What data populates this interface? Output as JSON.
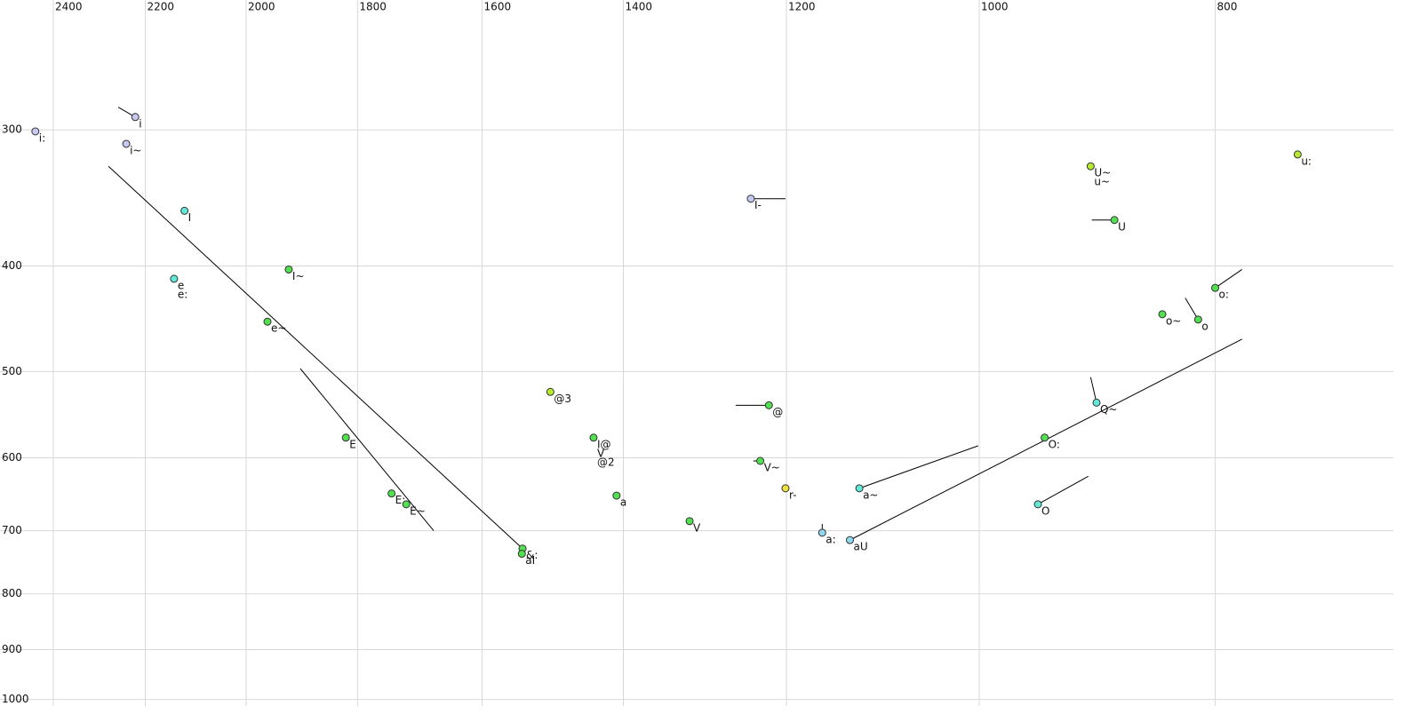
{
  "chart_data": {
    "type": "scatter",
    "x": [
      2441,
      2221,
      2240,
      2120,
      2141,
      1921,
      1960,
      1820,
      1743,
      1719,
      1540,
      1541,
      1500,
      1440,
      1409,
      1315,
      1241,
      1220,
      1230,
      1201,
      1160,
      1130,
      1120,
      900,
      880,
      740,
      800,
      841,
      813,
      895,
      940,
      946
    ],
    "y": [
      301,
      292,
      309,
      356,
      411,
      403,
      450,
      575,
      647,
      662,
      727,
      735,
      522,
      575,
      650,
      686,
      347,
      537,
      604,
      640,
      703,
      714,
      640,
      324,
      363,
      316,
      419,
      443,
      448,
      534,
      575,
      662
    ],
    "labels": [
      [
        "i:"
      ],
      [
        "i"
      ],
      [
        "i~"
      ],
      [
        "I"
      ],
      [
        "e",
        "e:"
      ],
      [
        "I~"
      ],
      [
        "e~"
      ],
      [
        "E"
      ],
      [
        "E:"
      ],
      [
        "E~"
      ],
      [
        "&:"
      ],
      [
        "aI"
      ],
      [
        "@3"
      ],
      [
        "I@",
        "V",
        "@2"
      ],
      [
        "a"
      ],
      [
        "V"
      ],
      [
        "I-"
      ],
      [
        "@"
      ],
      [
        "V~"
      ],
      [
        "r-"
      ],
      [
        "a:"
      ],
      [
        "aU"
      ],
      [
        "a~"
      ],
      [
        "U~",
        "u~"
      ],
      [
        "U"
      ],
      [
        "u:"
      ],
      [
        "o:"
      ],
      [
        "o~"
      ],
      [
        "o"
      ],
      [
        "Q~"
      ],
      [
        "O:"
      ],
      [
        "O"
      ]
    ],
    "colors": [
      "#c8c8f4",
      "#c8c8f4",
      "#c8c8f4",
      "#60e8d8",
      "#60e8d8",
      "#50e050",
      "#50e050",
      "#50e050",
      "#50e050",
      "#50e050",
      "#50e050",
      "#50e050",
      "#b8e830",
      "#50e050",
      "#50e050",
      "#50e050",
      "#c8c8f4",
      "#50e050",
      "#50e050",
      "#f0e040",
      "#90d8f0",
      "#90d8f0",
      "#60e8d8",
      "#b8e830",
      "#50e050",
      "#b8e830",
      "#50e050",
      "#50e050",
      "#50e050",
      "#60e8d8",
      "#50e050",
      "#60e8d8"
    ],
    "segments": [
      [
        2257,
        286,
        2221,
        292
      ],
      [
        2278,
        324,
        1540,
        727
      ],
      [
        1900,
        497,
        1675,
        700
      ],
      [
        1241,
        347,
        1201,
        347
      ],
      [
        1259,
        537,
        1220,
        537
      ],
      [
        1238,
        604,
        1230,
        604
      ],
      [
        1160,
        690,
        1160,
        703
      ],
      [
        1130,
        714,
        780,
        467
      ],
      [
        1120,
        640,
        1001,
        585
      ],
      [
        899,
        363,
        880,
        363
      ],
      [
        800,
        419,
        780,
        403
      ],
      [
        823,
        428,
        813,
        448
      ],
      [
        900,
        506,
        895,
        534
      ],
      [
        946,
        662,
        902,
        624
      ]
    ],
    "xlim": [
      2524,
      676
    ],
    "ylim": [
      228,
      1014
    ],
    "xticks": [
      2400,
      2200,
      2000,
      1800,
      1600,
      1400,
      1200,
      1000,
      800
    ],
    "yticks": [
      300,
      400,
      500,
      600,
      700,
      800,
      900,
      1000
    ],
    "xlog": true,
    "ylog": true,
    "grid": true
  }
}
